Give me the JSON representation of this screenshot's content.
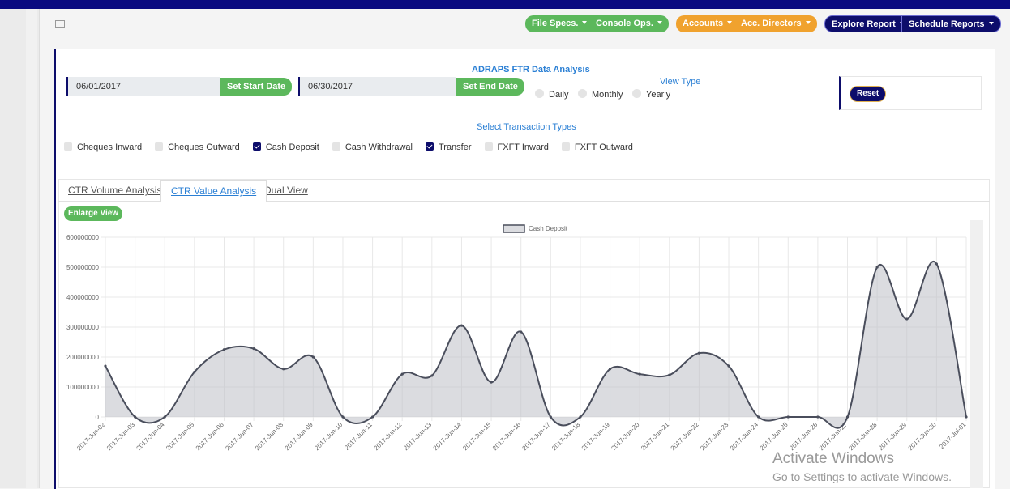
{
  "nav": [
    "File Specs.",
    "Console Ops.",
    "Accounts",
    "Acc. Directors",
    "Explore Report",
    "Schedule Reports"
  ],
  "form": {
    "title": "ADRAPS FTR Data Analysis",
    "start_date": "06/01/2017",
    "set_start": "Set Start Date",
    "end_date": "06/30/2017",
    "set_end": "Set End Date",
    "view_type": "View Type",
    "view_options": [
      "Daily",
      "Monthly",
      "Yearly"
    ],
    "reset": "Reset",
    "transaction_label": "Select Transaction Types",
    "transaction_types": [
      {
        "label": "Cheques Inward",
        "checked": false
      },
      {
        "label": "Cheques Outward",
        "checked": false
      },
      {
        "label": "Cash Deposit",
        "checked": true
      },
      {
        "label": "Cash Withdrawal",
        "checked": false
      },
      {
        "label": "Transfer",
        "checked": true
      },
      {
        "label": "FXFT Inward",
        "checked": false
      },
      {
        "label": "FXFT Outward",
        "checked": false
      }
    ]
  },
  "tabs": {
    "items": [
      "CTR Volume Analysis",
      "CTR Value Analysis",
      "Dual View"
    ],
    "active": 1
  },
  "enlarge": "Enlarge View",
  "watermark": {
    "title": "Activate Windows",
    "text": "Go to Settings to activate Windows."
  },
  "chart_data": {
    "type": "area",
    "categories": [
      "2017-Jun-02",
      "2017-Jun-03",
      "2017-Jun-04",
      "2017-Jun-05",
      "2017-Jun-06",
      "2017-Jun-07",
      "2017-Jun-08",
      "2017-Jun-09",
      "2017-Jun-10",
      "2017-Jun-11",
      "2017-Jun-12",
      "2017-Jun-13",
      "2017-Jun-14",
      "2017-Jun-15",
      "2017-Jun-16",
      "2017-Jun-17",
      "2017-Jun-18",
      "2017-Jun-19",
      "2017-Jun-20",
      "2017-Jun-21",
      "2017-Jun-22",
      "2017-Jun-23",
      "2017-Jun-24",
      "2017-Jun-25",
      "2017-Jun-26",
      "2017-Jun-27",
      "2017-Jun-28",
      "2017-Jun-29",
      "2017-Jun-30",
      "2017-Jul-01"
    ],
    "series": [
      {
        "name": "Cash Deposit",
        "color": "#4a4e5c",
        "values": [
          170000000,
          0,
          0,
          150000000,
          225000000,
          228000000,
          160000000,
          200000000,
          0,
          0,
          143000000,
          138000000,
          305000000,
          116000000,
          284000000,
          0,
          0,
          160000000,
          143000000,
          140000000,
          213000000,
          170000000,
          0,
          0,
          0,
          0,
          500000000,
          327000000,
          511000000,
          0
        ]
      }
    ],
    "ylim": [
      0,
      600000000
    ],
    "yticks": [
      0,
      100000000,
      200000000,
      300000000,
      400000000,
      500000000,
      600000000
    ],
    "grid": true,
    "legend": "top"
  }
}
